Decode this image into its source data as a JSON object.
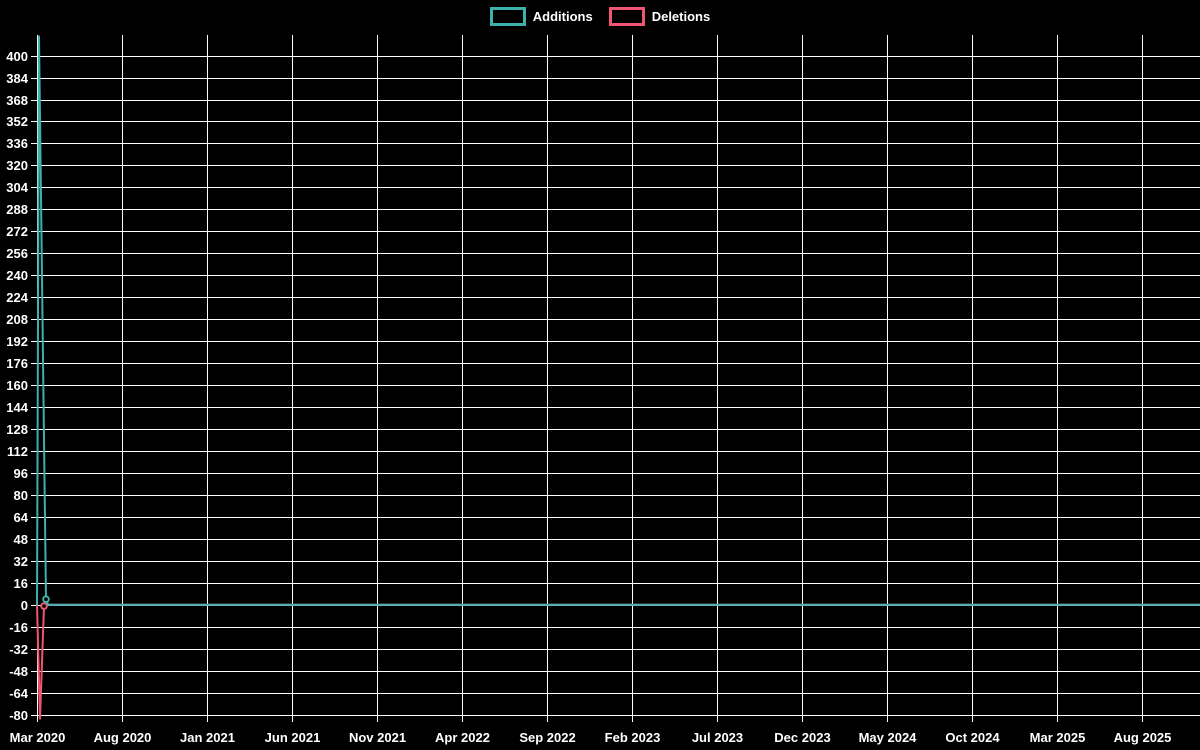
{
  "legend": {
    "position": "top",
    "items": [
      {
        "label": "Additions",
        "color": "#3db1ac"
      },
      {
        "label": "Deletions",
        "color": "#f0566f"
      }
    ]
  },
  "chart_data": {
    "type": "line",
    "title": "",
    "xlabel": "",
    "ylabel": "",
    "background_color": "#000000",
    "grid": true,
    "grid_color": "#ffffff",
    "text_color": "#ffffff",
    "legend_position": "top",
    "x_tick_labels": [
      "Mar 2020",
      "Aug 2020",
      "Jan 2021",
      "Jun 2021",
      "Nov 2021",
      "Apr 2022",
      "Sep 2022",
      "Feb 2023",
      "Jul 2023",
      "Dec 2023",
      "May 2024",
      "Oct 2024",
      "Mar 2025",
      "Aug 2025"
    ],
    "y_tick_labels": [
      400,
      384,
      368,
      352,
      336,
      320,
      304,
      288,
      272,
      256,
      240,
      224,
      208,
      192,
      176,
      160,
      144,
      128,
      112,
      96,
      80,
      64,
      48,
      32,
      16,
      0,
      -16,
      -32,
      -48,
      -64,
      -80
    ],
    "y_axis": {
      "min": -84,
      "max": 415,
      "tick_step": 16
    },
    "series": [
      {
        "name": "Additions",
        "color": "#3db1ac",
        "points": [
          [
            0,
            0
          ],
          [
            0.0017,
            414
          ],
          [
            0.0077,
            4
          ],
          [
            0.0095,
            0
          ],
          [
            1,
            0
          ]
        ],
        "markers": [
          [
            0.0077,
            4
          ]
        ]
      },
      {
        "name": "Deletions",
        "color": "#f0566f",
        "points": [
          [
            0,
            0
          ],
          [
            0.0026,
            -83
          ],
          [
            0.006,
            -1
          ],
          [
            0.009,
            0
          ],
          [
            1,
            0
          ]
        ],
        "markers": [
          [
            0.006,
            -1
          ]
        ]
      }
    ]
  }
}
